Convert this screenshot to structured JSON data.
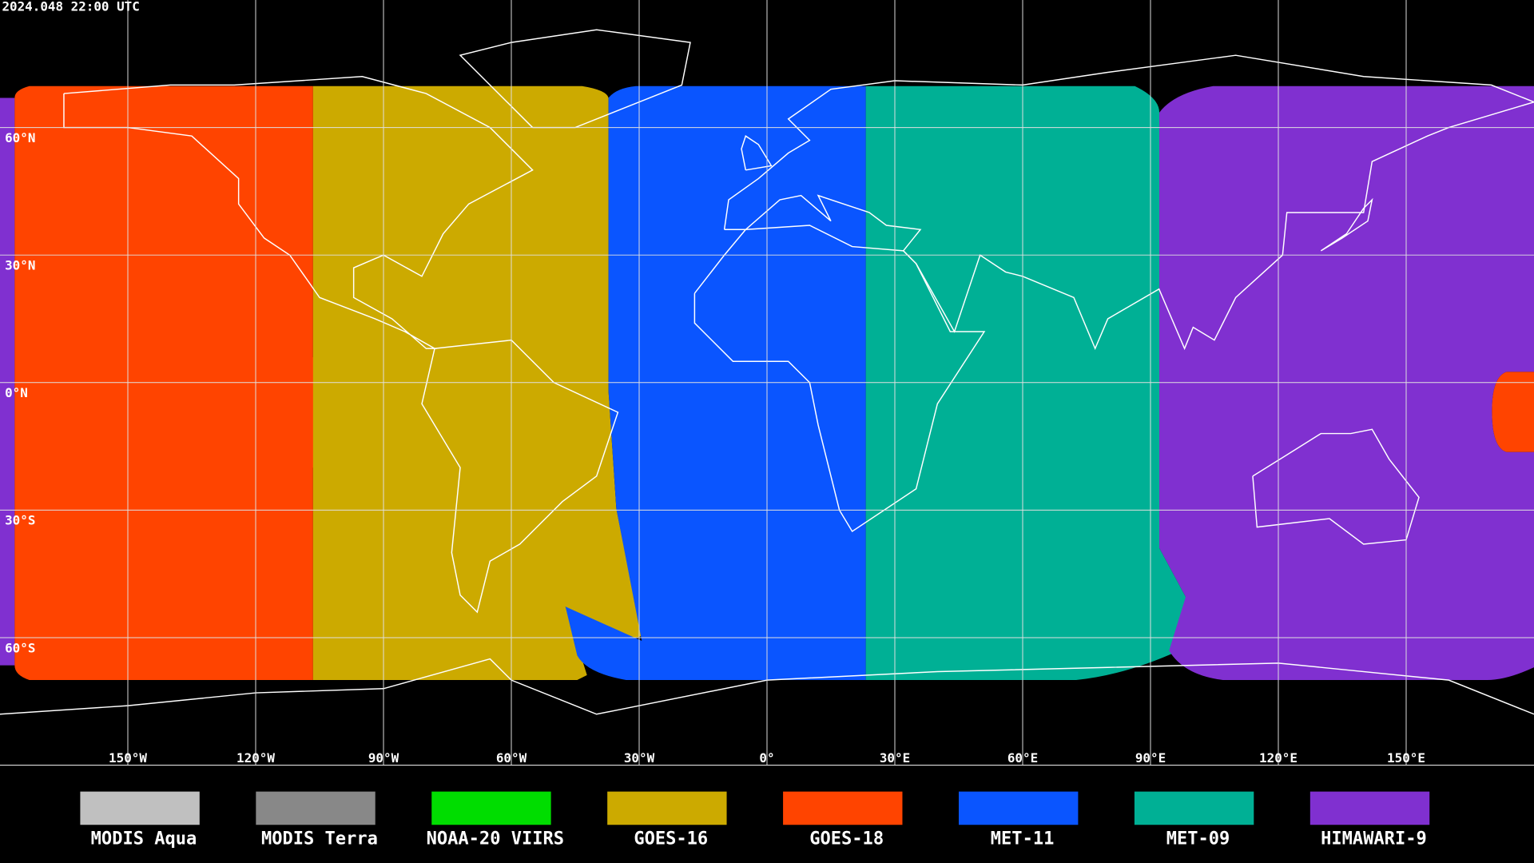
{
  "timestamp": "2024.048 22:00 UTC",
  "map": {
    "lat_lines": [
      {
        "value": 60,
        "label": "60°N"
      },
      {
        "value": 30,
        "label": "30°N"
      },
      {
        "value": 0,
        "label": "0°N"
      },
      {
        "value": -30,
        "label": "30°S"
      },
      {
        "value": -60,
        "label": "60°S"
      }
    ],
    "lon_lines": [
      {
        "value": -150,
        "label": "150°W"
      },
      {
        "value": -120,
        "label": "120°W"
      },
      {
        "value": -90,
        "label": "90°W"
      },
      {
        "value": -60,
        "label": "60°W"
      },
      {
        "value": -30,
        "label": "30°W"
      },
      {
        "value": 0,
        "label": "0°"
      },
      {
        "value": 30,
        "label": "30°E"
      },
      {
        "value": 60,
        "label": "60°E"
      },
      {
        "value": 90,
        "label": "90°E"
      },
      {
        "value": 120,
        "label": "120°E"
      },
      {
        "value": 150,
        "label": "150°E"
      }
    ]
  },
  "legend": [
    {
      "name": "MODIS Aqua",
      "color": "#c0c0c0"
    },
    {
      "name": "MODIS Terra",
      "color": "#888888"
    },
    {
      "name": "NOAA-20 VIIRS",
      "color": "#00dd00"
    },
    {
      "name": "GOES-16",
      "color": "#ccaa00"
    },
    {
      "name": "GOES-18",
      "color": "#ff4400"
    },
    {
      "name": "MET-11",
      "color": "#0a55ff"
    },
    {
      "name": "MET-09",
      "color": "#00b095"
    },
    {
      "name": "HIMAWARI-9",
      "color": "#8030d0"
    }
  ]
}
